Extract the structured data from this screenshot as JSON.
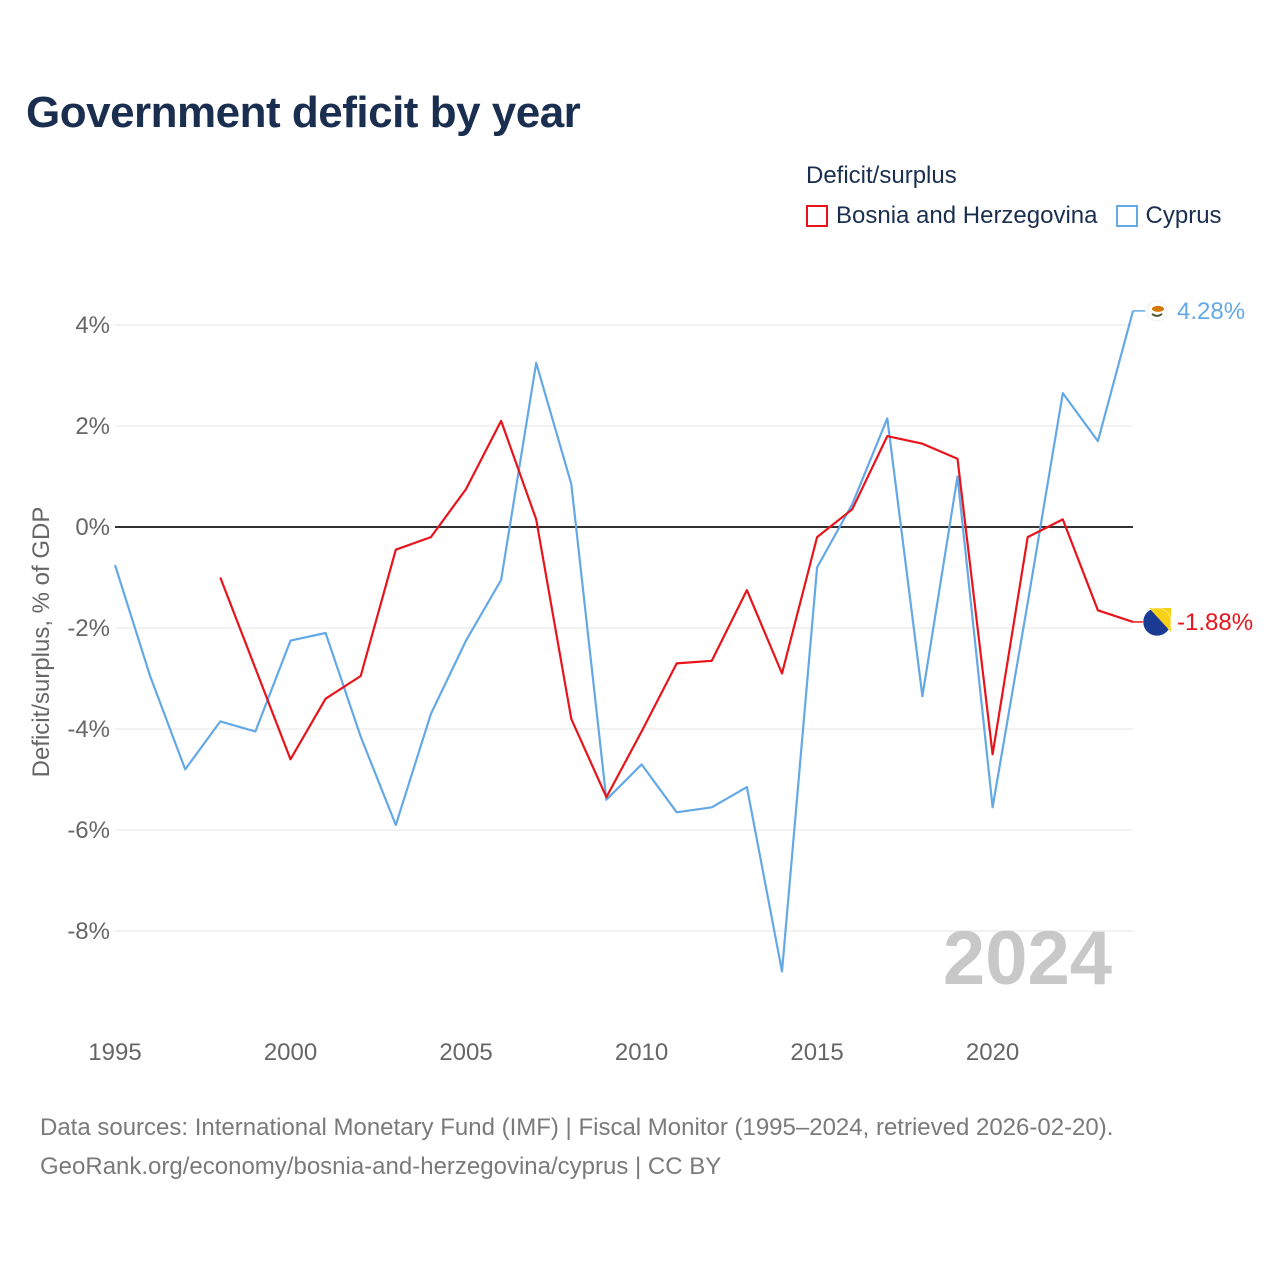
{
  "title": "Government deficit by year",
  "legend": {
    "title": "Deficit/surplus",
    "items": [
      {
        "name": "Bosnia and Herzegovina",
        "color": "#e8141c"
      },
      {
        "name": "Cyprus",
        "color": "#64a8e6"
      }
    ]
  },
  "source": {
    "line1": "Data sources: International Monetary Fund (IMF) | Fiscal Monitor (1995–2024, retrieved 2026-02-20).",
    "line2": "GeoRank.org/economy/bosnia-and-herzegovina/cyprus | CC BY"
  },
  "chart_data": {
    "type": "line",
    "title": "Government deficit by year",
    "xlabel": "",
    "ylabel": "Deficit/surplus, % of GDP",
    "xlim": [
      1995,
      2024
    ],
    "ylim": [
      -9.5,
      4.5
    ],
    "x_ticks": [
      1995,
      2000,
      2005,
      2010,
      2015,
      2020
    ],
    "y_ticks": [
      4,
      2,
      0,
      -2,
      -4,
      -6,
      -8
    ],
    "y_tick_labels": [
      "4%",
      "2%",
      "0%",
      "-2%",
      "-4%",
      "-6%",
      "-8%"
    ],
    "current_year_label": "2024",
    "series": [
      {
        "name": "Bosnia and Herzegovina",
        "color": "#e8141c",
        "end_label": "-1.88%",
        "points": [
          [
            1998,
            -1.0
          ],
          [
            1999,
            -2.8
          ],
          [
            2000,
            -4.6
          ],
          [
            2001,
            -3.4
          ],
          [
            2002,
            -2.95
          ],
          [
            2003,
            -0.45
          ],
          [
            2004,
            -0.2
          ],
          [
            2005,
            0.75
          ],
          [
            2006,
            2.1
          ],
          [
            2007,
            0.15
          ],
          [
            2008,
            -3.8
          ],
          [
            2009,
            -5.35
          ],
          [
            2010,
            -4.05
          ],
          [
            2011,
            -2.7
          ],
          [
            2012,
            -2.65
          ],
          [
            2013,
            -1.25
          ],
          [
            2014,
            -2.9
          ],
          [
            2015,
            -0.2
          ],
          [
            2016,
            0.35
          ],
          [
            2017,
            1.8
          ],
          [
            2018,
            1.65
          ],
          [
            2019,
            1.35
          ],
          [
            2020,
            -4.5
          ],
          [
            2021,
            -0.2
          ],
          [
            2022,
            0.15
          ],
          [
            2023,
            -1.65
          ],
          [
            2024,
            -1.88
          ]
        ]
      },
      {
        "name": "Cyprus",
        "color": "#64a8e6",
        "end_label": "4.28%",
        "points": [
          [
            1995,
            -0.75
          ],
          [
            1996,
            -2.95
          ],
          [
            1997,
            -4.8
          ],
          [
            1998,
            -3.85
          ],
          [
            1999,
            -4.05
          ],
          [
            2000,
            -2.25
          ],
          [
            2001,
            -2.1
          ],
          [
            2002,
            -4.15
          ],
          [
            2003,
            -5.9
          ],
          [
            2004,
            -3.7
          ],
          [
            2005,
            -2.25
          ],
          [
            2006,
            -1.05
          ],
          [
            2007,
            3.25
          ],
          [
            2008,
            0.85
          ],
          [
            2009,
            -5.4
          ],
          [
            2010,
            -4.7
          ],
          [
            2011,
            -5.65
          ],
          [
            2012,
            -5.55
          ],
          [
            2013,
            -5.15
          ],
          [
            2014,
            -8.8
          ],
          [
            2015,
            -0.8
          ],
          [
            2016,
            0.45
          ],
          [
            2017,
            2.15
          ],
          [
            2018,
            -3.35
          ],
          [
            2019,
            1.0
          ],
          [
            2020,
            -5.55
          ],
          [
            2021,
            -1.5
          ],
          [
            2022,
            2.65
          ],
          [
            2023,
            1.7
          ],
          [
            2024,
            4.28
          ]
        ]
      }
    ]
  }
}
